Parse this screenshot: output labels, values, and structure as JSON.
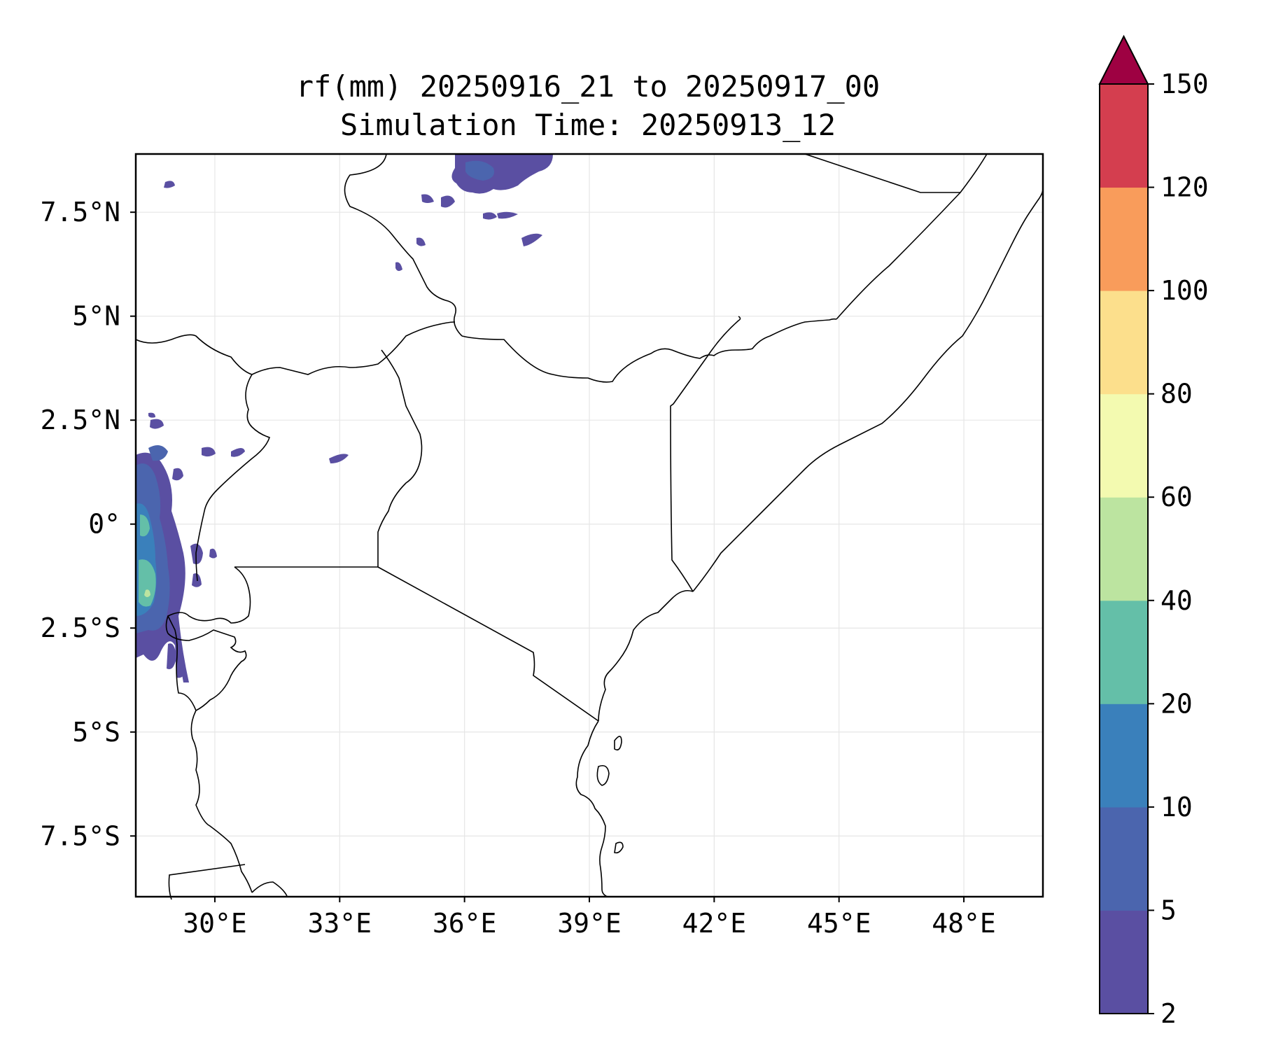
{
  "title": {
    "line1": "rf(mm) 20250916_21 to 20250917_00",
    "line2": "Simulation Time: 20250913_12"
  },
  "map": {
    "lon_range": [
      28.1,
      49.9
    ],
    "lat_range": [
      -8.96,
      8.9
    ],
    "lon_ticks": [
      {
        "value": 30,
        "label": "30°E"
      },
      {
        "value": 33,
        "label": "33°E"
      },
      {
        "value": 36,
        "label": "36°E"
      },
      {
        "value": 39,
        "label": "39°E"
      },
      {
        "value": 42,
        "label": "42°E"
      },
      {
        "value": 45,
        "label": "45°E"
      },
      {
        "value": 48,
        "label": "48°E"
      }
    ],
    "lat_ticks": [
      {
        "value": 7.5,
        "label": "7.5°N"
      },
      {
        "value": 5,
        "label": "5°N"
      },
      {
        "value": 2.5,
        "label": "2.5°N"
      },
      {
        "value": 0,
        "label": "0°"
      },
      {
        "value": -2.5,
        "label": "2.5°S"
      },
      {
        "value": -5,
        "label": "5°S"
      },
      {
        "value": -7.5,
        "label": "7.5°S"
      }
    ],
    "gridlines": true,
    "rainfall_regions": [
      "western edge near Lake Victoria (peak 20–40 mm)",
      "South Sudan / Ethiopia border (2–10 mm)",
      "scattered cells over Uganda and western Kenya (2–5 mm)"
    ]
  },
  "colorbar": {
    "unit": "mm",
    "levels": [
      2,
      5,
      10,
      20,
      40,
      60,
      80,
      100,
      120,
      150
    ],
    "colors": [
      "#5a4fa2",
      "#4b65ae",
      "#3a80bb",
      "#64bfa8",
      "#bce4a0",
      "#f3fab0",
      "#fcdf8c",
      "#f99c5b",
      "#d43e4f"
    ],
    "extend_color": "#9e0142",
    "extend": "max"
  },
  "colors": {
    "border_lines": "#000000",
    "gridline": "#e6e6e6"
  }
}
